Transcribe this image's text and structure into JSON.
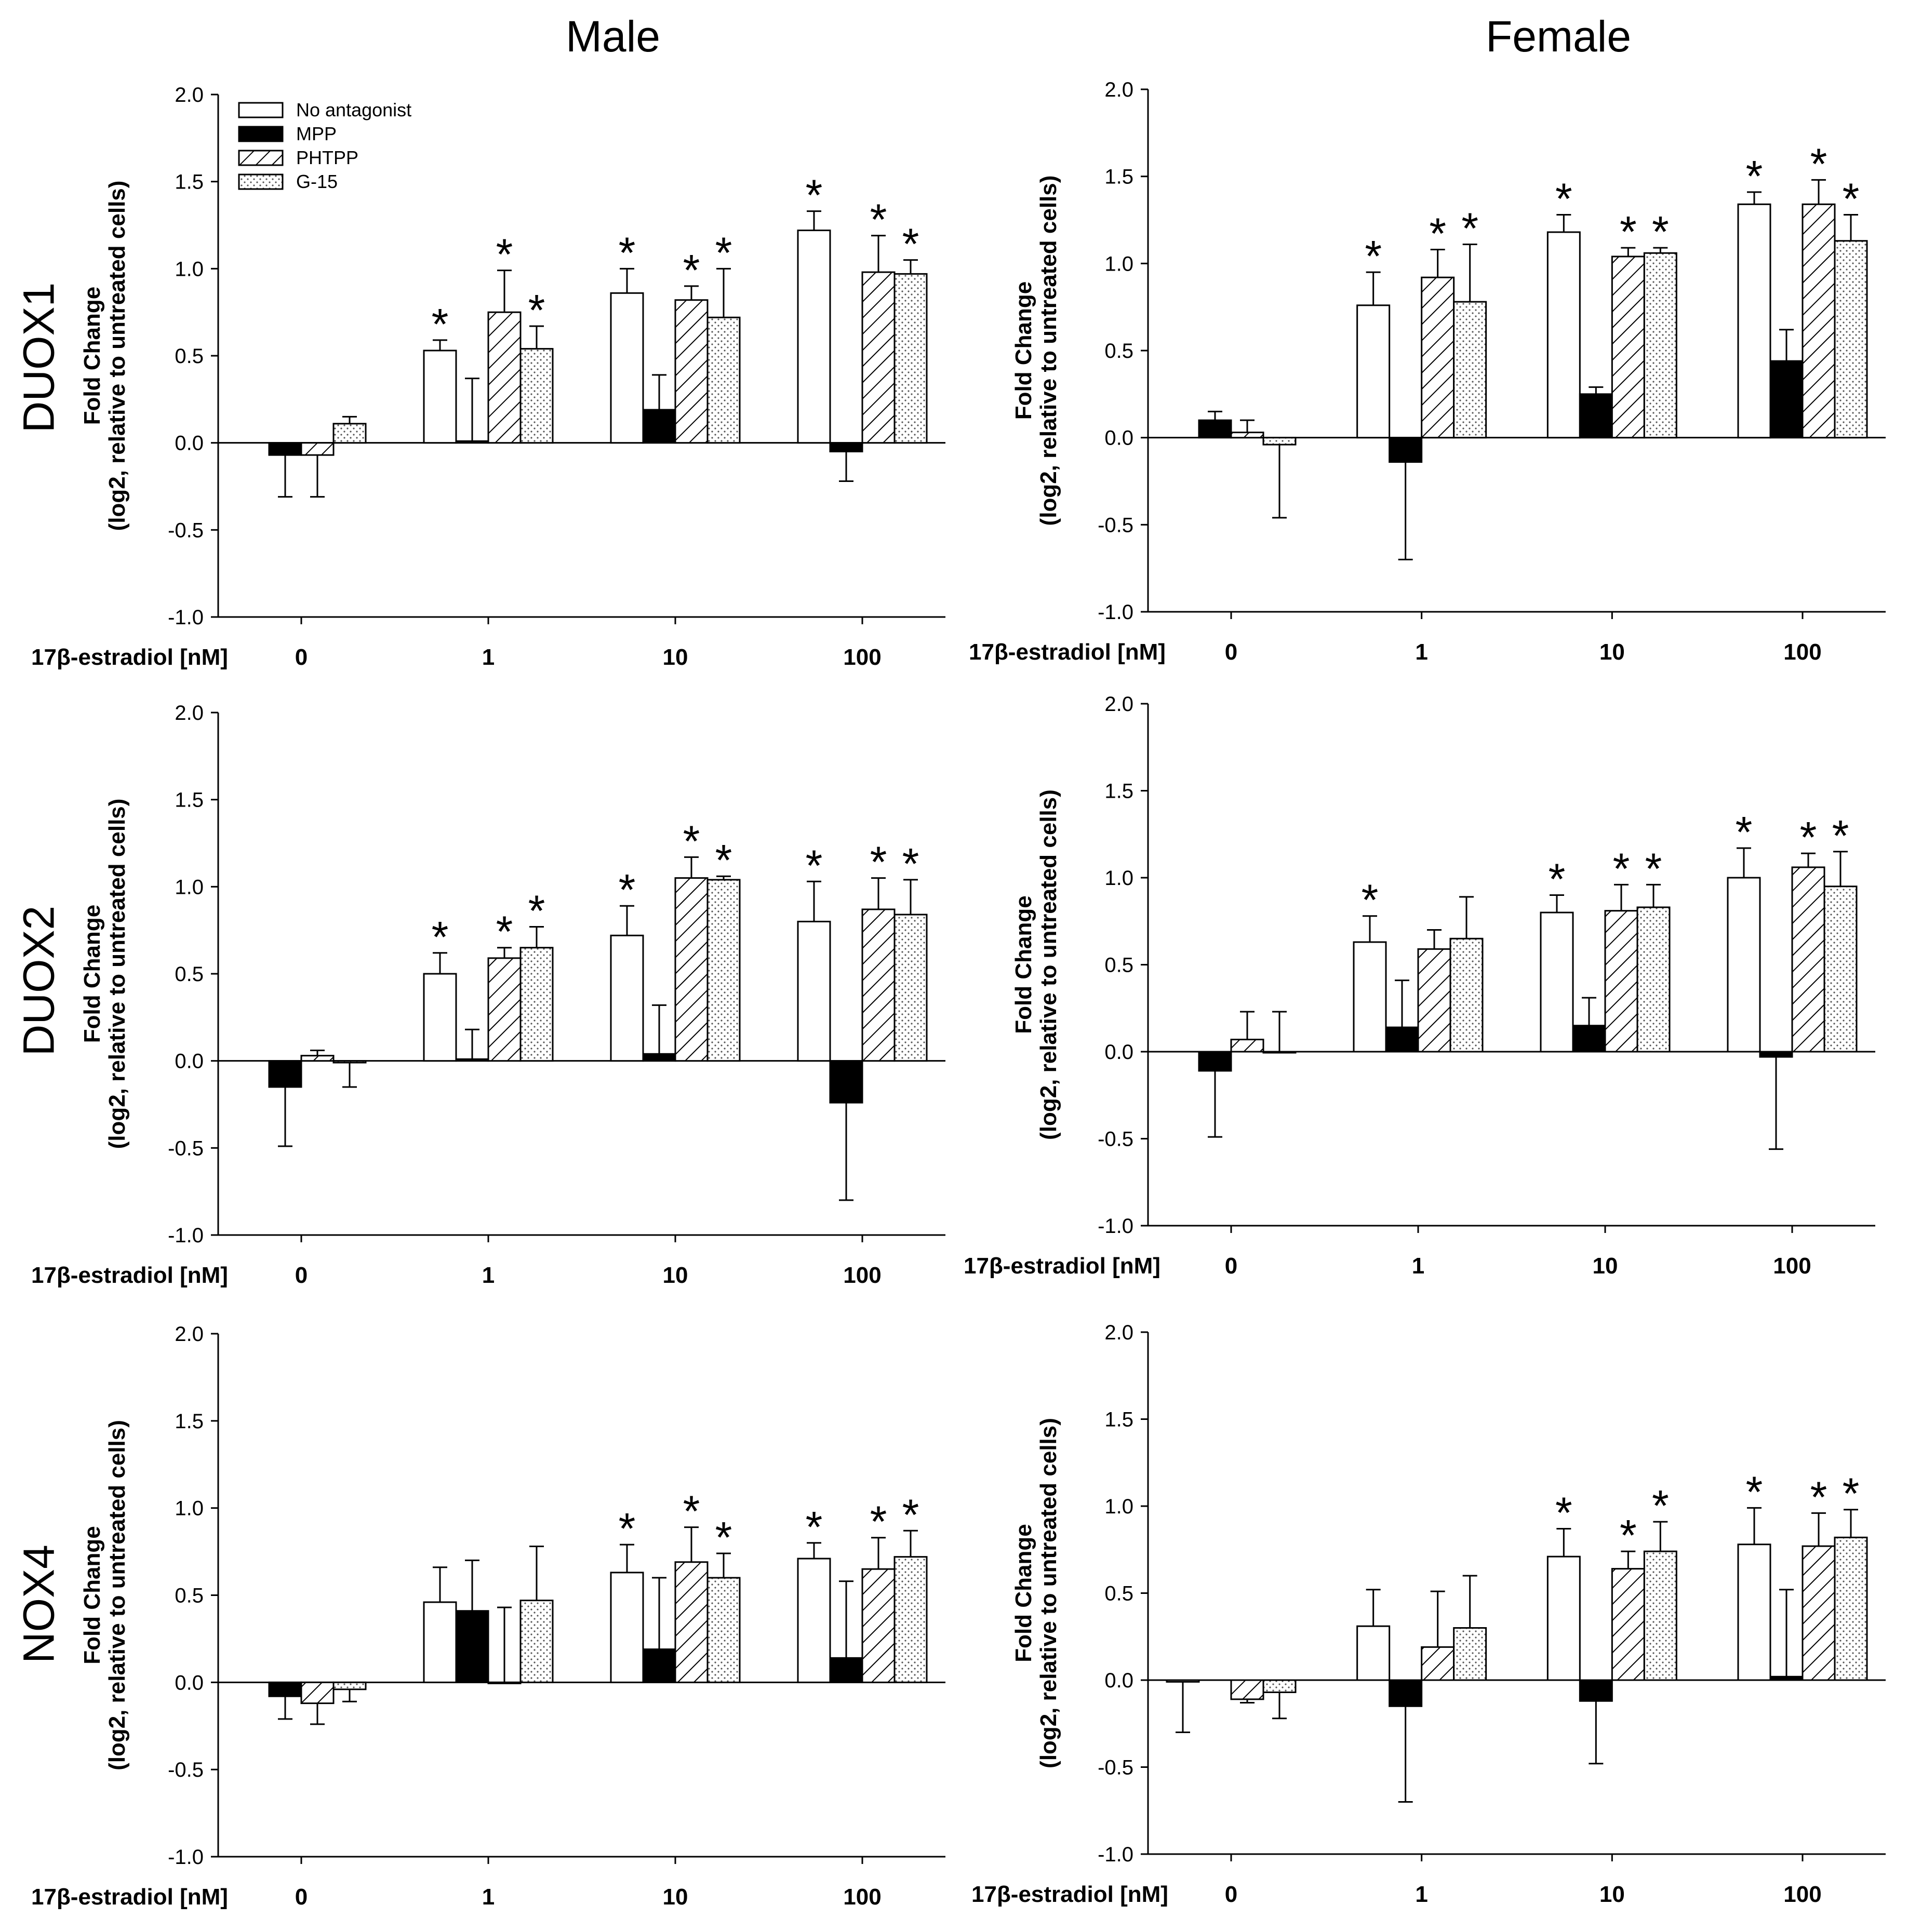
{
  "column_titles": [
    "Male",
    "Female"
  ],
  "row_labels": [
    "DUOX1",
    "DUOX2",
    "NOX4"
  ],
  "colors": {
    "axis": "#000000",
    "bar_stroke": "#000000",
    "no_antagonist_fill": "#ffffff",
    "mpp_fill": "#000000",
    "phtpp_hatch": "#000000",
    "g15_dots": "#555555"
  },
  "chart_data": [
    {
      "id": "duox1-male",
      "type": "bar",
      "panel": "DUOX1 - Male",
      "ylabel_line1": "Fold Change",
      "ylabel_line2": "(log2, relative to untreated cells)",
      "xlabel": "17β-estradiol [nM]",
      "categories": [
        "0",
        "1",
        "10",
        "100"
      ],
      "yticks": [
        "-1.0",
        "-0.5",
        "0.0",
        "0.5",
        "1.0",
        "1.5",
        "2.0"
      ],
      "ylim": [
        -1,
        2
      ],
      "legend": [
        "No antagonist",
        "MPP",
        "PHTPP",
        "G-15"
      ],
      "series": [
        {
          "name": "No antagonist",
          "values": [
            null,
            0.53,
            0.86,
            1.22
          ],
          "errors": [
            null,
            0.06,
            0.14,
            0.11
          ],
          "stars": [
            false,
            true,
            true,
            true
          ]
        },
        {
          "name": "MPP",
          "values": [
            -0.07,
            0.01,
            0.19,
            -0.05
          ],
          "errors": [
            0.24,
            0.36,
            0.2,
            0.17
          ],
          "stars": [
            false,
            false,
            false,
            false
          ]
        },
        {
          "name": "PHTPP",
          "values": [
            -0.07,
            0.75,
            0.82,
            0.98
          ],
          "errors": [
            0.24,
            0.24,
            0.08,
            0.21
          ],
          "stars": [
            false,
            true,
            true,
            true
          ]
        },
        {
          "name": "G-15",
          "values": [
            0.11,
            0.54,
            0.72,
            0.97
          ],
          "errors": [
            0.04,
            0.13,
            0.28,
            0.08
          ],
          "stars": [
            false,
            true,
            true,
            true
          ]
        }
      ]
    },
    {
      "id": "duox1-female",
      "type": "bar",
      "panel": "DUOX1 - Female",
      "ylabel_line1": "Fold Change",
      "ylabel_line2": "(log2, relative to untreated cells)",
      "xlabel": "17β-estradiol [nM]",
      "categories": [
        "0",
        "1",
        "10",
        "100"
      ],
      "yticks": [
        "-1.0",
        "-0.5",
        "0.0",
        "0.5",
        "1.0",
        "1.5",
        "2.0"
      ],
      "ylim": [
        -1,
        2
      ],
      "legend": [],
      "series": [
        {
          "name": "No antagonist",
          "values": [
            null,
            0.76,
            1.18,
            1.34
          ],
          "errors": [
            null,
            0.19,
            0.1,
            0.07
          ],
          "stars": [
            false,
            true,
            true,
            true
          ]
        },
        {
          "name": "MPP",
          "values": [
            0.1,
            -0.14,
            0.25,
            0.44
          ],
          "errors": [
            0.05,
            0.56,
            0.04,
            0.18
          ],
          "stars": [
            false,
            false,
            false,
            false
          ]
        },
        {
          "name": "PHTPP",
          "values": [
            0.03,
            0.92,
            1.04,
            1.34
          ],
          "errors": [
            0.07,
            0.16,
            0.05,
            0.14
          ],
          "stars": [
            false,
            true,
            true,
            true
          ]
        },
        {
          "name": "G-15",
          "values": [
            -0.04,
            0.78,
            1.06,
            1.13
          ],
          "errors": [
            0.42,
            0.33,
            0.03,
            0.15
          ],
          "stars": [
            false,
            true,
            true,
            true
          ]
        }
      ]
    },
    {
      "id": "duox2-male",
      "type": "bar",
      "panel": "DUOX2 - Male",
      "ylabel_line1": "Fold Change",
      "ylabel_line2": "(log2, relative to untreated cells)",
      "xlabel": "17β-estradiol [nM]",
      "categories": [
        "0",
        "1",
        "10",
        "100"
      ],
      "yticks": [
        "-1.0",
        "-0.5",
        "0.0",
        "0.5",
        "1.0",
        "1.5",
        "2.0"
      ],
      "ylim": [
        -1,
        2
      ],
      "legend": [],
      "series": [
        {
          "name": "No antagonist",
          "values": [
            null,
            0.5,
            0.72,
            0.8
          ],
          "errors": [
            null,
            0.12,
            0.17,
            0.23
          ],
          "stars": [
            false,
            true,
            true,
            true
          ]
        },
        {
          "name": "MPP",
          "values": [
            -0.15,
            0.01,
            0.04,
            -0.24
          ],
          "errors": [
            0.34,
            0.17,
            0.28,
            0.56
          ],
          "stars": [
            false,
            false,
            false,
            false
          ]
        },
        {
          "name": "PHTPP",
          "values": [
            0.03,
            0.59,
            1.05,
            0.87
          ],
          "errors": [
            0.03,
            0.06,
            0.12,
            0.18
          ],
          "stars": [
            false,
            true,
            true,
            true
          ]
        },
        {
          "name": "G-15",
          "values": [
            -0.01,
            0.65,
            1.04,
            0.84
          ],
          "errors": [
            0.14,
            0.12,
            0.02,
            0.2
          ],
          "stars": [
            false,
            true,
            true,
            true
          ]
        }
      ]
    },
    {
      "id": "duox2-female",
      "type": "bar",
      "panel": "DUOX2 - Female",
      "ylabel_line1": "Fold Change",
      "ylabel_line2": "(log2, relative to untreated cells)",
      "xlabel": "17β-estradiol [nM]",
      "categories": [
        "0",
        "1",
        "10",
        "100"
      ],
      "yticks": [
        "-1.0",
        "-0.5",
        "0.0",
        "0.5",
        "1.0",
        "1.5",
        "2.0"
      ],
      "ylim": [
        -1,
        2
      ],
      "legend": [],
      "series": [
        {
          "name": "No antagonist",
          "values": [
            null,
            0.63,
            0.8,
            1.0
          ],
          "errors": [
            null,
            0.15,
            0.1,
            0.17
          ],
          "stars": [
            false,
            true,
            true,
            true
          ]
        },
        {
          "name": "MPP",
          "values": [
            -0.11,
            0.14,
            0.15,
            -0.03
          ],
          "errors": [
            0.38,
            0.27,
            0.16,
            0.53
          ],
          "stars": [
            false,
            false,
            false,
            false
          ]
        },
        {
          "name": "PHTPP",
          "values": [
            0.07,
            0.59,
            0.81,
            1.06
          ],
          "errors": [
            0.16,
            0.11,
            0.15,
            0.08
          ],
          "stars": [
            false,
            false,
            true,
            true
          ]
        },
        {
          "name": "G-15",
          "values": [
            0.0,
            0.65,
            0.83,
            0.95
          ],
          "errors": [
            0.23,
            0.24,
            0.13,
            0.2
          ],
          "stars": [
            false,
            false,
            true,
            true
          ]
        }
      ]
    },
    {
      "id": "nox4-male",
      "type": "bar",
      "panel": "NOX4 - Male",
      "ylabel_line1": "Fold Change",
      "ylabel_line2": "(log2, relative to untreated cells)",
      "xlabel": "17β-estradiol [nM]",
      "categories": [
        "0",
        "1",
        "10",
        "100"
      ],
      "yticks": [
        "-1.0",
        "-0.5",
        "0.0",
        "0.5",
        "1.0",
        "1.5",
        "2.0"
      ],
      "ylim": [
        -1,
        2
      ],
      "legend": [],
      "series": [
        {
          "name": "No antagonist",
          "values": [
            null,
            0.46,
            0.63,
            0.71
          ],
          "errors": [
            null,
            0.2,
            0.16,
            0.09
          ],
          "stars": [
            false,
            false,
            true,
            true
          ]
        },
        {
          "name": "MPP",
          "values": [
            -0.08,
            0.41,
            0.19,
            0.14
          ],
          "errors": [
            0.13,
            0.29,
            0.41,
            0.44
          ],
          "stars": [
            false,
            false,
            false,
            false
          ]
        },
        {
          "name": "PHTPP",
          "values": [
            -0.12,
            0.0,
            0.69,
            0.65
          ],
          "errors": [
            0.12,
            0.43,
            0.2,
            0.18
          ],
          "stars": [
            false,
            false,
            true,
            true
          ]
        },
        {
          "name": "G-15",
          "values": [
            -0.04,
            0.47,
            0.6,
            0.72
          ],
          "errors": [
            0.07,
            0.31,
            0.14,
            0.15
          ],
          "stars": [
            false,
            false,
            true,
            true
          ]
        }
      ]
    },
    {
      "id": "nox4-female",
      "type": "bar",
      "panel": "NOX4 - Female",
      "ylabel_line1": "Fold Change",
      "ylabel_line2": "(log2, relative to untreated cells)",
      "xlabel": "17β-estradiol [nM]",
      "categories": [
        "0",
        "1",
        "10",
        "100"
      ],
      "yticks": [
        "-1.0",
        "-0.5",
        "0.0",
        "0.5",
        "1.0",
        "1.5",
        "2.0"
      ],
      "ylim": [
        -1,
        2
      ],
      "legend": [],
      "series": [
        {
          "name": "No antagonist",
          "values": [
            -0.01,
            0.31,
            0.71,
            0.78
          ],
          "errors": [
            0.29,
            0.21,
            0.16,
            0.21
          ],
          "stars": [
            false,
            false,
            true,
            true
          ]
        },
        {
          "name": "MPP",
          "values": [
            null,
            -0.15,
            -0.12,
            0.02
          ],
          "errors": [
            null,
            0.55,
            0.36,
            0.5
          ],
          "stars": [
            false,
            false,
            false,
            false
          ]
        },
        {
          "name": "PHTPP",
          "values": [
            -0.11,
            0.19,
            0.64,
            0.77
          ],
          "errors": [
            0.02,
            0.32,
            0.1,
            0.19
          ],
          "stars": [
            false,
            false,
            true,
            true
          ]
        },
        {
          "name": "G-15",
          "values": [
            -0.07,
            0.3,
            0.74,
            0.82
          ],
          "errors": [
            0.15,
            0.3,
            0.17,
            0.16
          ],
          "stars": [
            false,
            false,
            true,
            true
          ]
        }
      ]
    }
  ]
}
